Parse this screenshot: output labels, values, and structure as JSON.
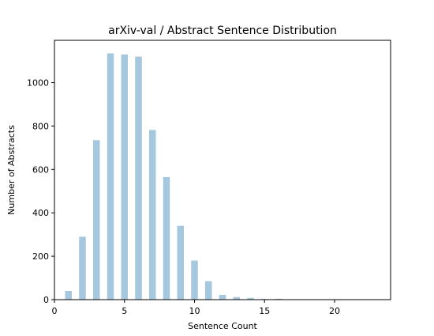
{
  "chart_data": {
    "type": "bar",
    "title": "arXiv-val / Abstract Sentence Distribution",
    "xlabel": "Sentence Count",
    "ylabel": "Number of Abstracts",
    "xlim": [
      0,
      24
    ],
    "ylim": [
      0,
      1195
    ],
    "xticks": [
      0,
      5,
      10,
      15,
      20
    ],
    "yticks": [
      0,
      200,
      400,
      600,
      800,
      1000
    ],
    "grid": false,
    "bar_color": "#a6c8df",
    "x": [
      1,
      2,
      3,
      4,
      5,
      6,
      7,
      8,
      9,
      10,
      11,
      12,
      13,
      14,
      15,
      16,
      17,
      18,
      19,
      20,
      21,
      22,
      23
    ],
    "values": [
      40,
      290,
      735,
      1135,
      1130,
      1120,
      782,
      565,
      340,
      180,
      85,
      22,
      12,
      8,
      3,
      4,
      1,
      1,
      1,
      1,
      1,
      1,
      1
    ]
  }
}
